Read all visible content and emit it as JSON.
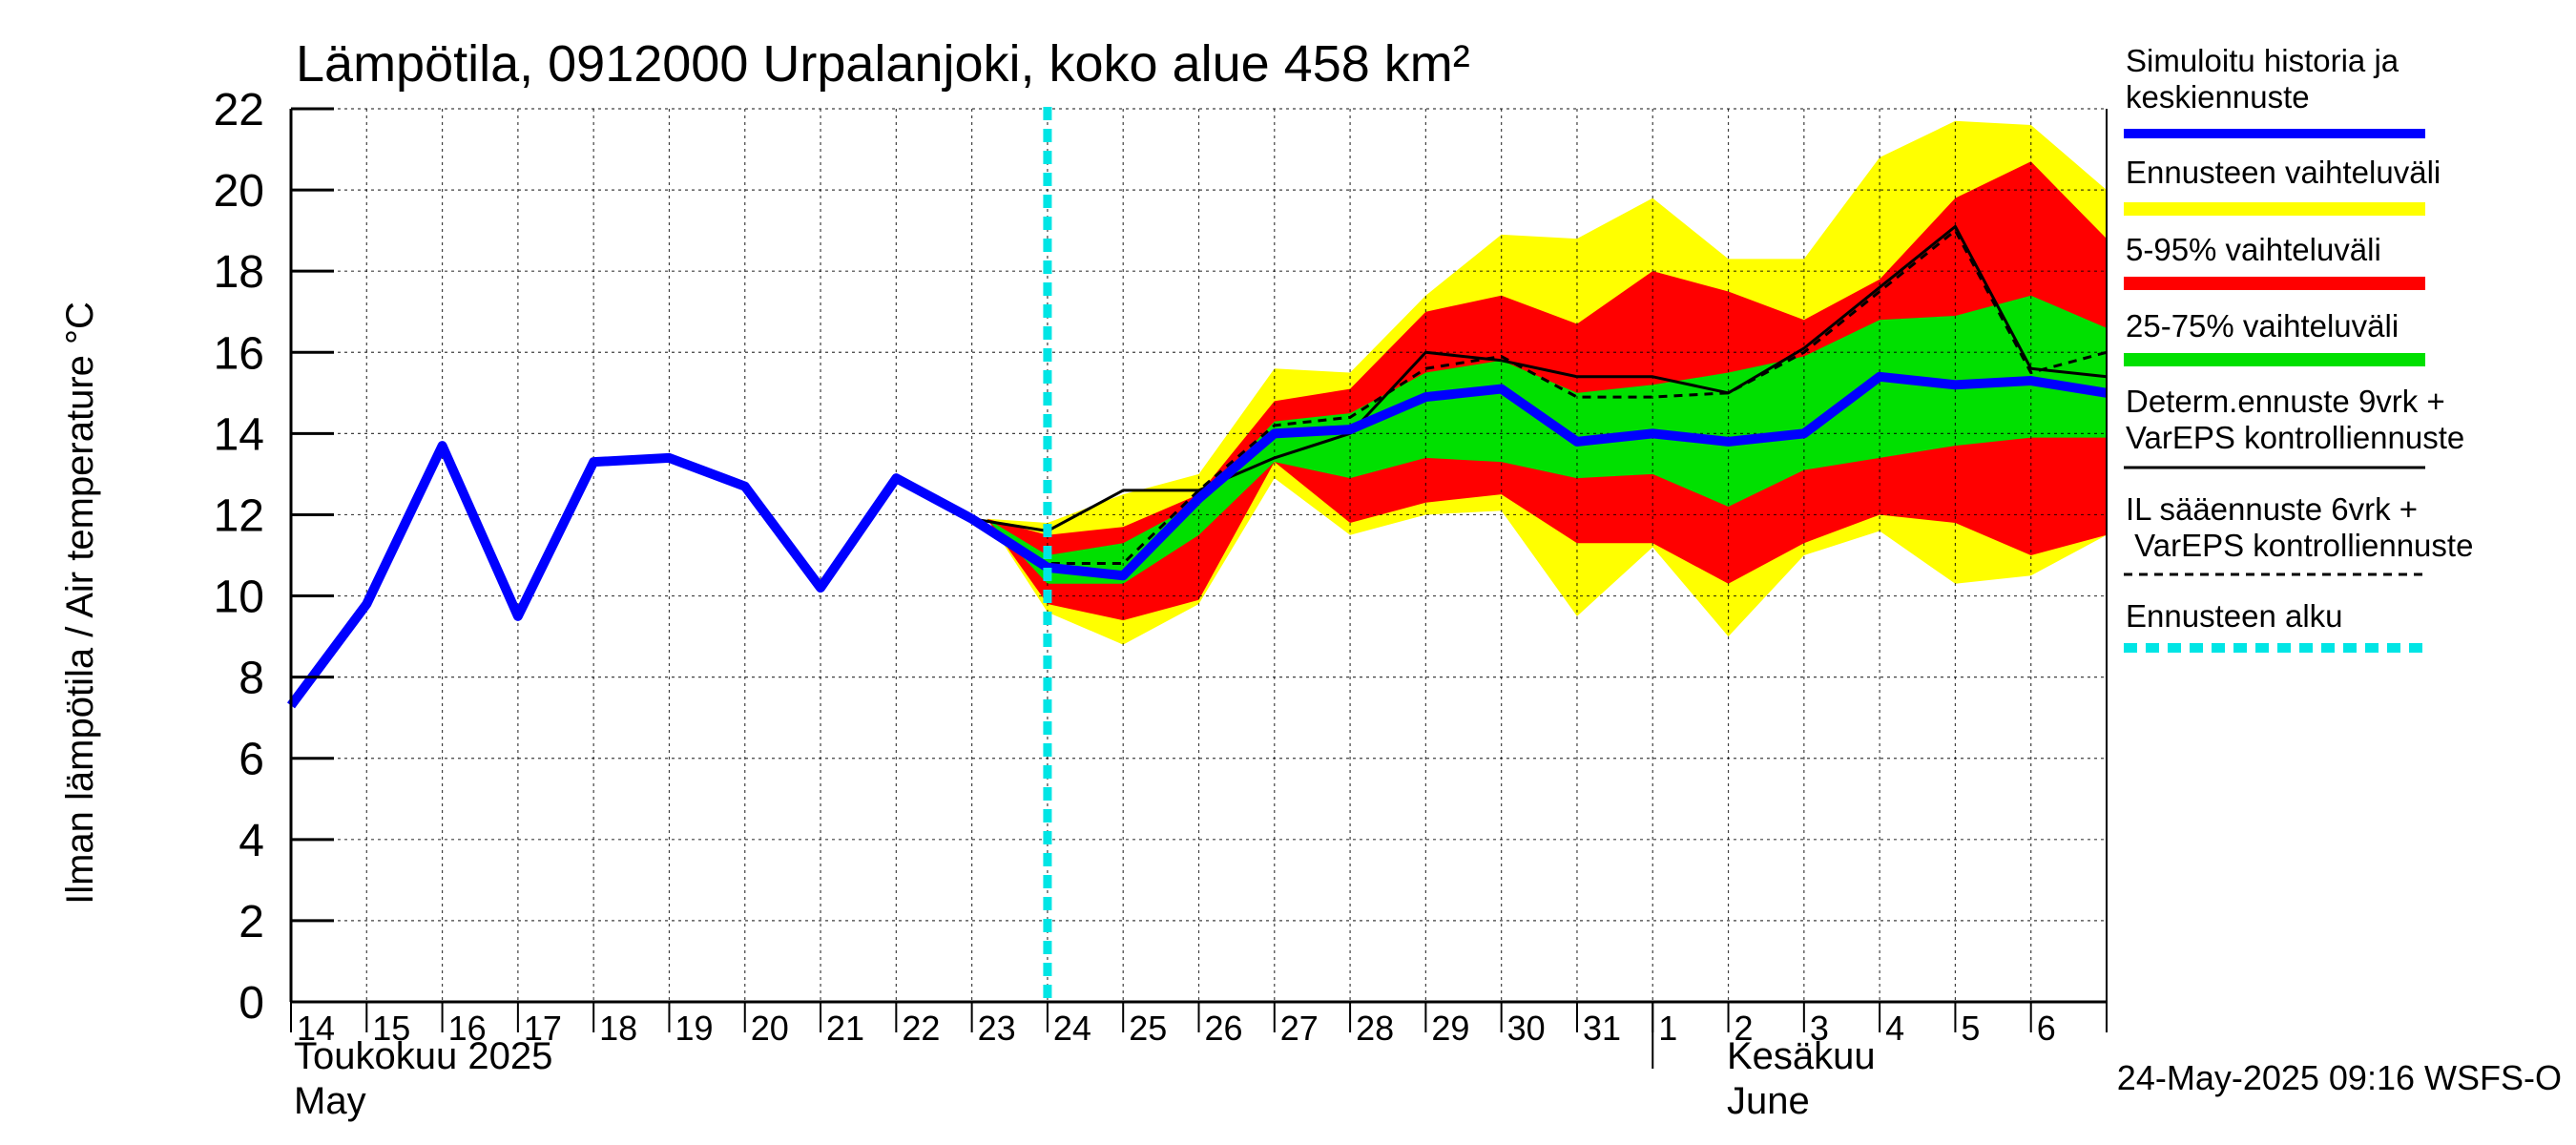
{
  "chart_data": {
    "type": "area",
    "title": "Lämpötila, 0912000 Urpalanjoki, koko alue 458 km²",
    "ylabel": "Ilman lämpötila / Air temperature   °C",
    "ylim": [
      0,
      22
    ],
    "yticks": [
      0,
      2,
      4,
      6,
      8,
      10,
      12,
      14,
      16,
      18,
      20,
      22
    ],
    "xlim": [
      0,
      24
    ],
    "day_labels": [
      "14",
      "15",
      "16",
      "17",
      "18",
      "19",
      "20",
      "21",
      "22",
      "23",
      "24",
      "25",
      "26",
      "27",
      "28",
      "29",
      "30",
      "31",
      "1",
      "2",
      "3",
      "4",
      "5",
      "6"
    ],
    "month_labels": {
      "may_fi": "Toukokuu  2025",
      "may_en": "May",
      "june_fi": "Kesäkuu",
      "june_en": "June"
    },
    "june_start": 18,
    "forecast_start": 10,
    "timestamp": "24-May-2025 09:16 WSFS-O",
    "legend": [
      {
        "label": "Simuloitu historia ja\nkeskiennuste",
        "color": "#0000ff",
        "style": "thick"
      },
      {
        "label": "Ennusteen vaihteluväli",
        "color": "#ffff00",
        "style": "band"
      },
      {
        "label": "5-95% vaihteluväli",
        "color": "#ff0000",
        "style": "band"
      },
      {
        "label": "25-75% vaihteluväli",
        "color": "#00e000",
        "style": "band"
      },
      {
        "label": "Determ.ennuste 9vrk +\nVarEPS kontrolliennuste",
        "color": "#000000",
        "style": "solid"
      },
      {
        "label": "IL sääennuste 6vrk  +\n  VarEPS kontrolliennuste",
        "color": "#000000",
        "style": "dashed"
      },
      {
        "label": "Ennusteen alku",
        "color": "#00e5e5",
        "style": "dotted"
      }
    ],
    "series": {
      "range_x": [
        9.2,
        10,
        11,
        12,
        13,
        14,
        15,
        16,
        17,
        18,
        19,
        20,
        21,
        22,
        23,
        24
      ],
      "range_max": [
        11.9,
        11.8,
        12.5,
        13.0,
        15.6,
        15.5,
        17.4,
        18.9,
        18.8,
        19.8,
        18.3,
        18.3,
        20.8,
        21.7,
        21.6,
        20.0
      ],
      "range_min": [
        11.9,
        9.6,
        8.8,
        9.8,
        12.9,
        11.5,
        12.0,
        12.1,
        9.5,
        11.2,
        9.0,
        11.0,
        11.6,
        10.3,
        10.5,
        11.5
      ],
      "p95": [
        11.9,
        11.5,
        11.7,
        12.5,
        14.8,
        15.1,
        17.0,
        17.4,
        16.7,
        18.0,
        17.5,
        16.8,
        17.8,
        19.8,
        20.7,
        18.8
      ],
      "p5": [
        11.9,
        9.8,
        9.4,
        9.9,
        13.3,
        11.8,
        12.3,
        12.5,
        11.3,
        11.3,
        10.3,
        11.3,
        12.0,
        11.8,
        11.0,
        11.5
      ],
      "p75": [
        11.9,
        11.0,
        11.3,
        12.3,
        14.3,
        14.5,
        15.5,
        15.8,
        15.0,
        15.2,
        15.5,
        15.9,
        16.8,
        16.9,
        17.4,
        16.6
      ],
      "p25": [
        11.9,
        10.3,
        10.3,
        11.5,
        13.3,
        12.9,
        13.4,
        13.3,
        12.9,
        13.0,
        12.2,
        13.1,
        13.4,
        13.7,
        13.9,
        13.9
      ],
      "history_x": [
        0,
        1,
        2,
        3,
        4,
        5,
        6,
        7,
        8,
        9,
        10,
        11,
        12,
        13,
        14,
        15,
        16,
        17,
        18,
        19,
        20,
        21,
        22,
        23,
        24
      ],
      "history_y": [
        7.3,
        9.8,
        13.7,
        9.5,
        13.3,
        13.4,
        12.7,
        10.2,
        12.9,
        11.9,
        10.7,
        10.5,
        12.4,
        14.0,
        14.1,
        14.9,
        15.1,
        13.8,
        14.0,
        13.8,
        14.0,
        15.4,
        15.2,
        15.3,
        15.0
      ],
      "determ_x": [
        8,
        9,
        10,
        11,
        12,
        13,
        14,
        15,
        16,
        17,
        18,
        19,
        20,
        21,
        22,
        23,
        24
      ],
      "determ_y": [
        12.9,
        11.9,
        11.6,
        12.6,
        12.6,
        13.4,
        14.0,
        16.0,
        15.8,
        15.4,
        15.4,
        15.0,
        16.1,
        17.6,
        19.1,
        15.6,
        15.4
      ],
      "il_x": [
        9,
        10,
        11,
        12,
        13,
        14,
        15,
        16,
        17,
        18,
        19,
        20,
        21,
        22,
        23,
        24
      ],
      "il_y": [
        11.9,
        10.8,
        10.8,
        12.6,
        14.2,
        14.4,
        15.6,
        15.9,
        14.9,
        14.9,
        15.0,
        16.0,
        17.5,
        19.0,
        15.5,
        16.0
      ]
    }
  }
}
